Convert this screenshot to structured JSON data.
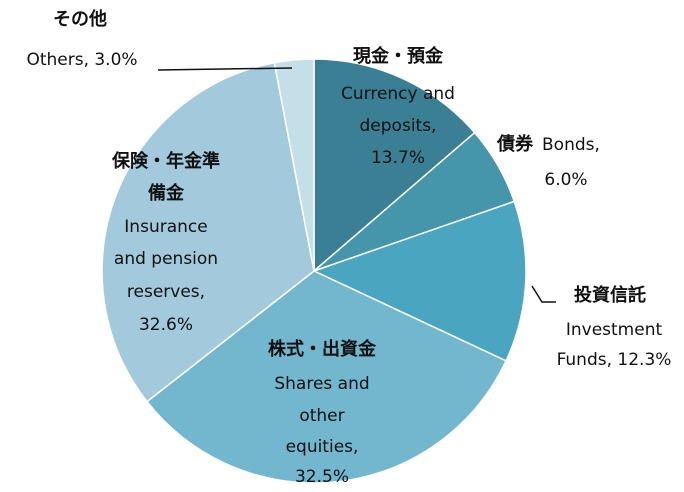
{
  "chart_data": {
    "type": "pie",
    "categories": [
      "Currency and deposits",
      "Bonds",
      "Investment Funds",
      "Shares and other equities",
      "Insurance and pension reserves",
      "Others"
    ],
    "names_ja": [
      [
        "現金・預金"
      ],
      [
        "債券"
      ],
      [
        "投資信託"
      ],
      [
        "株式・出資金"
      ],
      [
        "保険・年金準",
        "備金"
      ],
      [
        "その他"
      ]
    ],
    "values": [
      13.7,
      6.0,
      12.3,
      32.5,
      32.6,
      3.0
    ],
    "value_labels": [
      [
        "Currency and",
        "deposits,",
        "13.7%"
      ],
      [
        "Bonds,",
        "6.0%"
      ],
      [
        "Investment",
        "Funds, 12.3%"
      ],
      [
        "Shares and",
        "other",
        "equities,",
        "32.5%"
      ],
      [
        "Insurance",
        "and pension",
        "reserves,",
        "32.6%"
      ],
      [
        "Others, 3.0%"
      ]
    ],
    "colors": [
      "#3b7f95",
      "#4596ab",
      "#4aa6c0",
      "#72b7cd",
      "#a2cadc",
      "#c5dfe8"
    ]
  }
}
